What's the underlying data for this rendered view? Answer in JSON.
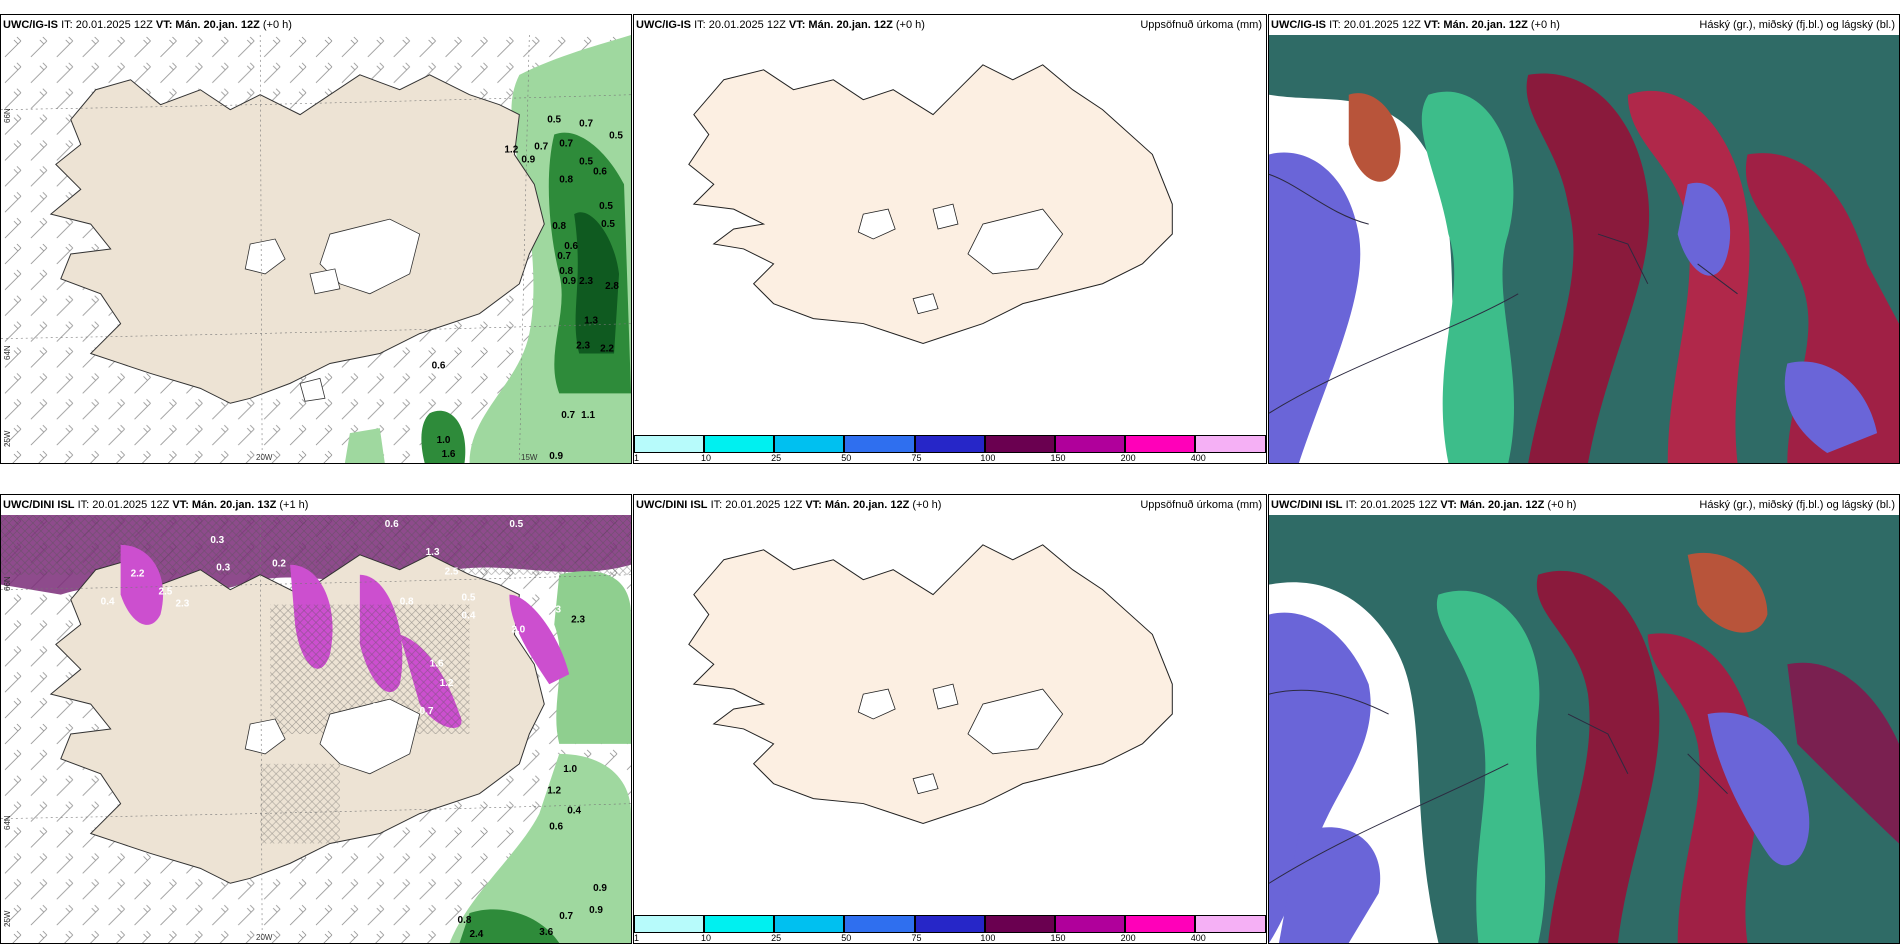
{
  "panels": {
    "p1": {
      "model": "UWC/IG-IS",
      "it": "IT: 20.01.2025 12Z",
      "vt_label": "VT:",
      "vt": "Mán. 20.jan. 12Z",
      "offset": "(+0 h)",
      "title_right": "",
      "lat1": "66N",
      "lat2": "64N",
      "lon1": "25W",
      "lon2": "20W",
      "lon3": "15W"
    },
    "p2": {
      "model": "UWC/IG-IS",
      "it": "IT: 20.01.2025 12Z",
      "vt_label": "VT:",
      "vt": "Mán. 20.jan. 12Z",
      "offset": "(+0 h)",
      "title_right": "Uppsöfnuð úrkoma (mm)"
    },
    "p3": {
      "model": "UWC/IG-IS",
      "it": "IT: 20.01.2025 12Z",
      "vt_label": "VT:",
      "vt": "Mán. 20.jan. 12Z",
      "offset": "(+0 h)",
      "title_right": "Háský (gr.), miðský (fj.bl.) og lágský (bl.)"
    },
    "p4": {
      "model": "UWC/DINI ISL",
      "it": "IT: 20.01.2025 12Z",
      "vt_label": "VT:",
      "vt": "Mán. 20.jan. 13Z",
      "offset": "(+1 h)",
      "title_right": "",
      "lat1": "66N",
      "lat2": "64N",
      "lon1": "25W",
      "lon2": "20W"
    },
    "p5": {
      "model": "UWC/DINI ISL",
      "it": "IT: 20.01.2025 12Z",
      "vt_label": "VT:",
      "vt": "Mán. 20.jan. 12Z",
      "offset": "(+0 h)",
      "title_right": "Uppsöfnuð úrkoma (mm)"
    },
    "p6": {
      "model": "UWC/DINI ISL",
      "it": "IT: 20.01.2025 12Z",
      "vt_label": "VT:",
      "vt": "Mán. 20.jan. 12Z",
      "offset": "(+0 h)",
      "title_right": "Háský (gr.), miðský (fj.bl.) og lágský (bl.)"
    }
  },
  "colorbar": {
    "ticks": [
      "1",
      "10",
      "25",
      "50",
      "75",
      "100",
      "150",
      "200",
      "400"
    ],
    "colors": [
      "#b7fbfb",
      "#00f0f0",
      "#00c0f0",
      "#2f6fef",
      "#2626c8",
      "#6a0050",
      "#b0009b",
      "#ff00b9",
      "#f5b0f5"
    ]
  },
  "precip_labels_p1": [
    "0.5",
    "0.7",
    "0.5",
    "0.6",
    "0.7",
    "0.5",
    "1.2",
    "0.7",
    "0.9",
    "0.8",
    "0.8",
    "0.6",
    "0.5",
    "0.5",
    "0.8",
    "0.7",
    "0.9",
    "2.3",
    "2.8",
    "1.3",
    "2.3",
    "2.2",
    "1.1",
    "1.0",
    "1.6",
    "0.6",
    "0.7",
    "0.9"
  ],
  "precip_labels_p4": [
    "0.3",
    "0.6",
    "0.5",
    "0.4",
    "2.2",
    "2.5",
    "2.3",
    "0.3",
    "0.2",
    "2.5",
    "1.3",
    "0.8",
    "2.0",
    "0.5",
    "0.4",
    "1.6",
    "1.2",
    "0.7",
    "0.3",
    "1.0",
    "0.6",
    "0.9",
    "0.9",
    "0.8",
    "0.7",
    "3.6",
    "2.4",
    "0.4",
    "1.2",
    "2.3",
    "0.6"
  ]
}
